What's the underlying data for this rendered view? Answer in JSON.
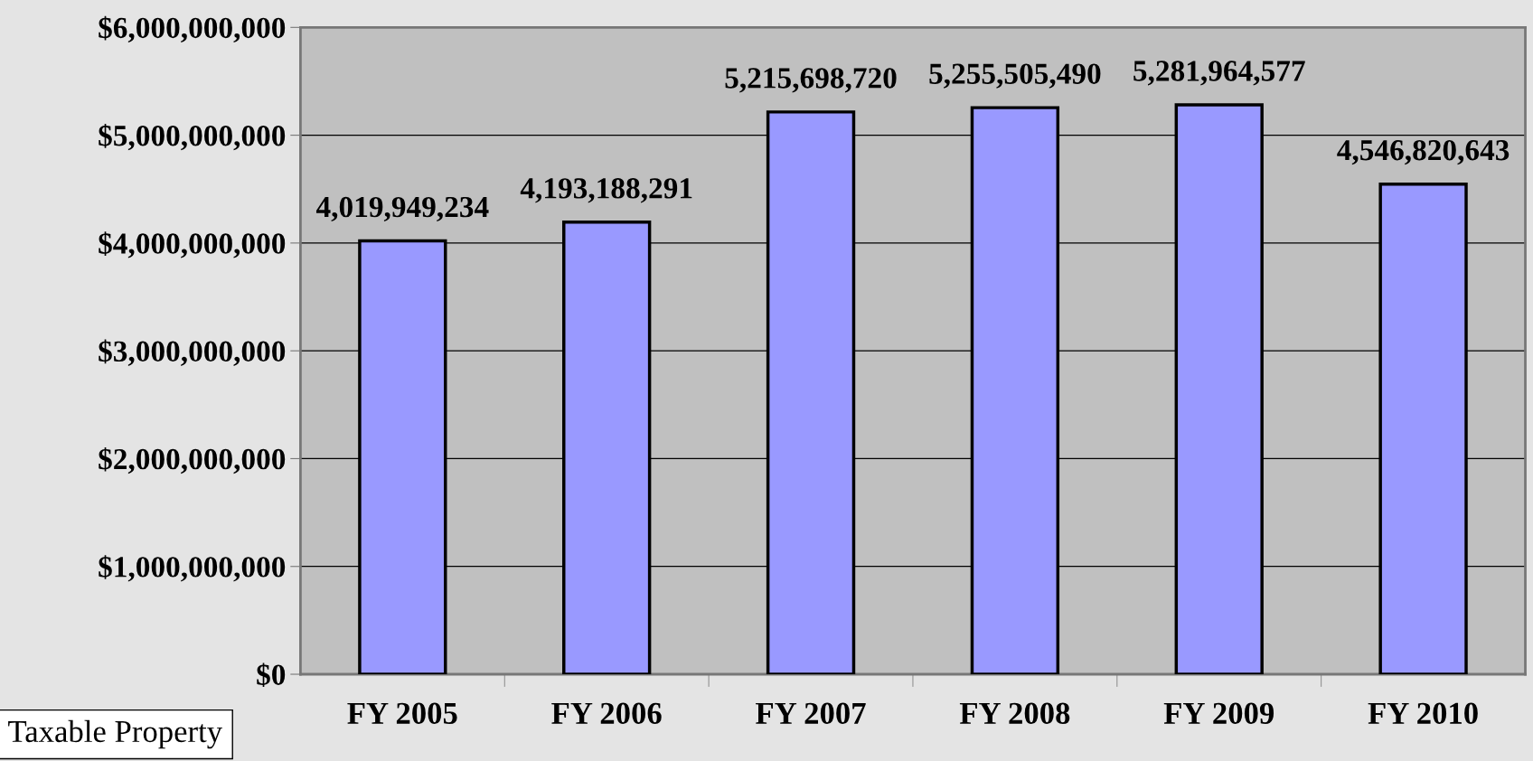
{
  "chart_data": {
    "type": "bar",
    "categories": [
      "FY 2005",
      "FY 2006",
      "FY 2007",
      "FY 2008",
      "FY 2009",
      "FY 2010"
    ],
    "values": [
      4019949234,
      4193188291,
      5215698720,
      5255505490,
      5281964577,
      4546820643
    ],
    "value_labels": [
      "4,019,949,234",
      "4,193,188,291",
      "5,215,698,720",
      "5,255,505,490",
      "5,281,964,577",
      "4,546,820,643"
    ],
    "color": "#9999ff",
    "ylim": [
      0,
      6000000000
    ],
    "yticks": [
      {
        "value": 0,
        "label": "$0"
      },
      {
        "value": 1000000000,
        "label": "$1,000,000,000"
      },
      {
        "value": 2000000000,
        "label": "$2,000,000,000"
      },
      {
        "value": 3000000000,
        "label": "$3,000,000,000"
      },
      {
        "value": 4000000000,
        "label": "$4,000,000,000"
      },
      {
        "value": 5000000000,
        "label": "$5,000,000,000"
      },
      {
        "value": 6000000000,
        "label": "$6,000,000,000"
      }
    ],
    "grid": "y",
    "annotations": [
      "Taxable Property"
    ]
  }
}
